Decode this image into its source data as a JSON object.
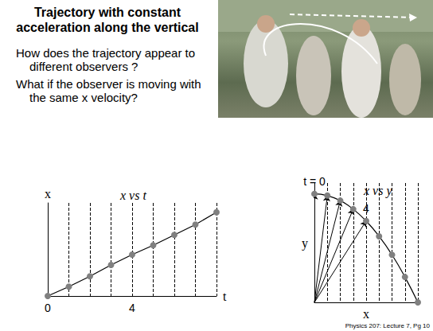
{
  "title": "Trajectory with constant acceleration along the vertical",
  "bullets": [
    "How does the trajectory appear to different observers ?",
    "What if the observer is moving with the same x velocity?"
  ],
  "footer": "Physics 207: Lecture 7, Pg 10",
  "chart_data": [
    {
      "type": "line",
      "title": "x vs t",
      "x_label": "t",
      "y_label": "x",
      "x": [
        0,
        1,
        2,
        3,
        4,
        5,
        6,
        7,
        8
      ],
      "values": [
        0,
        0.9,
        1.9,
        3,
        4,
        4.9,
        5.9,
        6.9,
        8.1
      ],
      "color": "#808080",
      "marker": "circle",
      "xlim": [
        0,
        8
      ],
      "ylim": [
        0,
        9
      ],
      "xticks": [
        {
          "value": 0,
          "label": "0"
        },
        {
          "value": 1,
          "label": null
        },
        {
          "value": 2,
          "label": null
        },
        {
          "value": 3,
          "label": null
        },
        {
          "value": 4,
          "label": "4"
        },
        {
          "value": 5,
          "label": null
        },
        {
          "value": 6,
          "label": null
        },
        {
          "value": 7,
          "label": null
        },
        {
          "value": 8,
          "label": null
        }
      ],
      "grid": true,
      "tick_labels": "x"
    },
    {
      "type": "line",
      "title": "x vs y",
      "x_label": "x",
      "y_label": "y",
      "x": [
        0,
        1,
        2,
        3,
        4,
        5,
        6,
        7,
        8
      ],
      "values": [
        10,
        9.84,
        9.38,
        8.59,
        7.5,
        6.09,
        4.38,
        2.34,
        0
      ],
      "color": "#808080",
      "marker": "circle",
      "line_style": "smooth",
      "xlim": [
        0,
        8
      ],
      "ylim": [
        0,
        11
      ],
      "xticks": [
        {
          "value": 0,
          "label": null
        },
        {
          "value": 1,
          "label": null
        },
        {
          "value": 2,
          "label": null
        },
        {
          "value": 3,
          "label": null
        },
        {
          "value": 4,
          "label": null
        },
        {
          "value": 5,
          "label": null
        },
        {
          "value": 6,
          "label": null
        },
        {
          "value": 7,
          "label": null
        },
        {
          "value": 8,
          "label": null
        }
      ],
      "grid": true,
      "tick_labels": false,
      "vectors": [
        0,
        1,
        2,
        3,
        4
      ],
      "annotations": [
        {
          "text": "t = 0",
          "point": 0
        },
        {
          "text": "4",
          "point": 4
        }
      ]
    }
  ]
}
